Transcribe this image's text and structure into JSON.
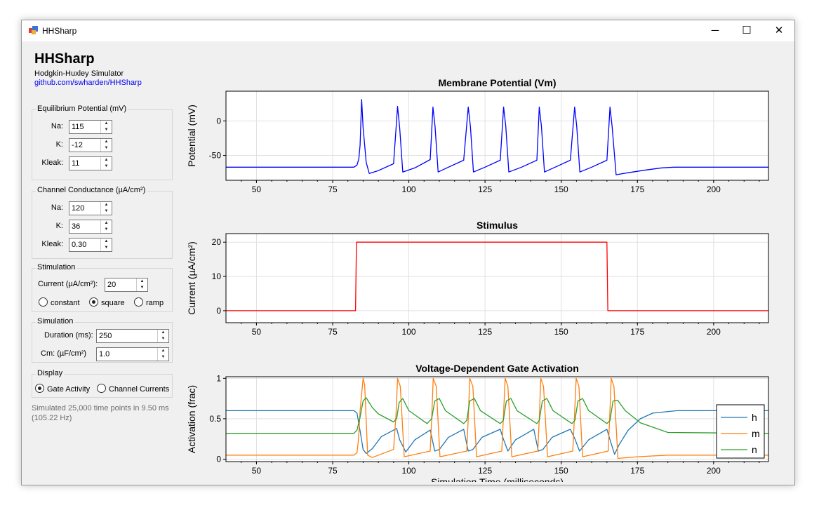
{
  "window": {
    "title": "HHSharp",
    "controls": {
      "minimize": "─",
      "maximize": "☐",
      "close": "✕"
    }
  },
  "panel": {
    "app_name": "HHSharp",
    "subtitle": "Hodgkin-Huxley Simulator",
    "link": "github.com/swharden/HHSharp",
    "equilibrium": {
      "title": "Equilibrium Potential (mV)",
      "na_label": "Na:",
      "na_value": "115",
      "k_label": "K:",
      "k_value": "-12",
      "kleak_label": "Kleak:",
      "kleak_value": "11"
    },
    "conductance": {
      "title": "Channel Conductance (µA/cm²)",
      "na_label": "Na:",
      "na_value": "120",
      "k_label": "K:",
      "k_value": "36",
      "kleak_label": "Kleak:",
      "kleak_value": "0.30"
    },
    "stimulation": {
      "title": "Stimulation",
      "current_label": "Current (µA/cm²):",
      "current_value": "20",
      "modes": [
        "constant",
        "square",
        "ramp"
      ],
      "selected_mode": "square"
    },
    "simulation": {
      "title": "Simulation",
      "duration_label": "Duration (ms):",
      "duration_value": "250",
      "cm_label": "Cm: (µF/cm²)",
      "cm_value": "1.0"
    },
    "display": {
      "title": "Display",
      "options": [
        "Gate Activity",
        "Channel Currents"
      ],
      "selected": "Gate Activity"
    },
    "status": "Simulated 25,000 time points in 9.50 ms (105.22 Hz)"
  },
  "chart_data": [
    {
      "type": "line",
      "title": "Membrane Potential (Vm)",
      "ylabel": "Potential (mV)",
      "xlabel": "",
      "xlim": [
        40,
        218
      ],
      "ylim": [
        -86,
        43
      ],
      "xticks": [
        50,
        75,
        100,
        125,
        150,
        175,
        200
      ],
      "yticks": [
        -50,
        0
      ],
      "grid": true,
      "spike_times": [
        84.5,
        96.3,
        107.9,
        119.5,
        131.1,
        142.8,
        154.4,
        166.0
      ],
      "series": [
        {
          "color": "#0000ff",
          "x": [
            40,
            82,
            83,
            83.6,
            84,
            84.5,
            85,
            86,
            87,
            90,
            95,
            96.3,
            97,
            98,
            102,
            107,
            107.9,
            108.6,
            109.6,
            113,
            118,
            119.5,
            120.2,
            121.2,
            125,
            130,
            131.1,
            131.8,
            132.8,
            137,
            142,
            142.8,
            143.5,
            144.5,
            148,
            153,
            154.4,
            155.1,
            156.1,
            160,
            165,
            166,
            166.7,
            168,
            172,
            178,
            183,
            187,
            195,
            218
          ],
          "y": [
            -67,
            -67,
            -64,
            -55,
            -35,
            31,
            -10,
            -60,
            -76,
            -72,
            -62,
            21,
            -10,
            -74,
            -68,
            -56,
            20,
            -8,
            -74,
            -67,
            -57,
            20,
            -8,
            -74,
            -67,
            -57,
            20,
            -8,
            -74,
            -67,
            -57,
            20,
            -8,
            -74,
            -67,
            -57,
            20,
            -8,
            -74,
            -67,
            -57,
            20,
            -8,
            -78,
            -75,
            -71,
            -68,
            -67,
            -67,
            -67
          ]
        }
      ]
    },
    {
      "type": "line",
      "title": "Stimulus",
      "ylabel": "Current (µA/cm²)",
      "xlabel": "",
      "xlim": [
        40,
        218
      ],
      "ylim": [
        -3.5,
        22.5
      ],
      "xticks": [
        50,
        75,
        100,
        125,
        150,
        175,
        200
      ],
      "yticks": [
        0,
        10,
        20
      ],
      "grid": true,
      "series": [
        {
          "color": "#ff0000",
          "x": [
            40,
            82.5,
            82.8,
            165,
            165.3,
            218
          ],
          "y": [
            0,
            0,
            20,
            20,
            0,
            0
          ]
        }
      ]
    },
    {
      "type": "line",
      "title": "Voltage-Dependent Gate Activation",
      "ylabel": "Activation (frac)",
      "xlabel": "Simulation Time (milliseconds)",
      "xlim": [
        40,
        218
      ],
      "ylim": [
        -0.03,
        1.02
      ],
      "xticks": [
        50,
        75,
        100,
        125,
        150,
        175,
        200
      ],
      "yticks": [
        0,
        0.5,
        1
      ],
      "ytick_labels": [
        "0",
        "0.5",
        "1"
      ],
      "grid": true,
      "legend": "right",
      "series": [
        {
          "name": "h",
          "color": "#1f77b4",
          "x": [
            40,
            82,
            83,
            84,
            85,
            86,
            88,
            91,
            96,
            97,
            99,
            102,
            107,
            108.5,
            110,
            113,
            118,
            119.5,
            121,
            124,
            130,
            131,
            132.5,
            135,
            141,
            142.5,
            144,
            147,
            153,
            154.5,
            156,
            159,
            165,
            166,
            167.5,
            169,
            172,
            176,
            180,
            188,
            218
          ],
          "y": [
            0.6,
            0.6,
            0.57,
            0.35,
            0.12,
            0.07,
            0.13,
            0.28,
            0.38,
            0.24,
            0.09,
            0.24,
            0.36,
            0.1,
            0.12,
            0.27,
            0.37,
            0.1,
            0.12,
            0.27,
            0.37,
            0.25,
            0.1,
            0.24,
            0.37,
            0.1,
            0.12,
            0.27,
            0.37,
            0.25,
            0.1,
            0.24,
            0.37,
            0.24,
            0.06,
            0.18,
            0.36,
            0.5,
            0.57,
            0.6,
            0.6
          ]
        },
        {
          "name": "m",
          "color": "#ff7f0e",
          "x": [
            40,
            82,
            83,
            83.5,
            84,
            85,
            85.5,
            86.5,
            88,
            95,
            95.8,
            96.3,
            97.2,
            98.5,
            107,
            107.5,
            108,
            109,
            110.2,
            119,
            119.5,
            120,
            121,
            122.2,
            130.5,
            131,
            131.6,
            132.5,
            133.8,
            142.3,
            142.8,
            143.3,
            144.2,
            145.5,
            153.8,
            154.3,
            154.9,
            155.8,
            157,
            165.4,
            165.9,
            166.4,
            167.3,
            168.6,
            175,
            185,
            218
          ],
          "y": [
            0.05,
            0.05,
            0.08,
            0.25,
            0.6,
            1.0,
            0.92,
            0.05,
            0.02,
            0.12,
            0.55,
            1.0,
            0.9,
            0.03,
            0.1,
            0.5,
            1.0,
            0.9,
            0.03,
            0.1,
            0.5,
            1.0,
            0.9,
            0.03,
            0.1,
            0.5,
            1.0,
            0.9,
            0.03,
            0.1,
            0.5,
            1.0,
            0.9,
            0.03,
            0.1,
            0.5,
            1.0,
            0.9,
            0.03,
            0.1,
            0.5,
            1.0,
            0.9,
            0.01,
            0.03,
            0.05,
            0.05
          ]
        },
        {
          "name": "n",
          "color": "#2ca02c",
          "x": [
            40,
            82,
            83,
            84,
            85,
            86,
            88,
            90,
            95,
            96,
            96.8,
            98,
            100,
            106,
            107.5,
            108.5,
            110,
            112,
            118,
            119,
            120,
            121.5,
            123.5,
            130,
            131,
            132,
            133.5,
            135.5,
            142,
            142.8,
            143.8,
            145.3,
            147.3,
            153.5,
            154.5,
            155.5,
            157,
            159,
            165,
            166,
            167,
            168.5,
            171,
            176,
            185,
            218
          ],
          "y": [
            0.32,
            0.32,
            0.36,
            0.52,
            0.72,
            0.76,
            0.64,
            0.56,
            0.46,
            0.5,
            0.7,
            0.75,
            0.6,
            0.44,
            0.5,
            0.72,
            0.75,
            0.6,
            0.44,
            0.48,
            0.72,
            0.75,
            0.6,
            0.44,
            0.48,
            0.72,
            0.75,
            0.6,
            0.44,
            0.48,
            0.72,
            0.75,
            0.6,
            0.44,
            0.48,
            0.72,
            0.75,
            0.6,
            0.44,
            0.48,
            0.72,
            0.73,
            0.6,
            0.45,
            0.33,
            0.32
          ]
        }
      ]
    }
  ]
}
